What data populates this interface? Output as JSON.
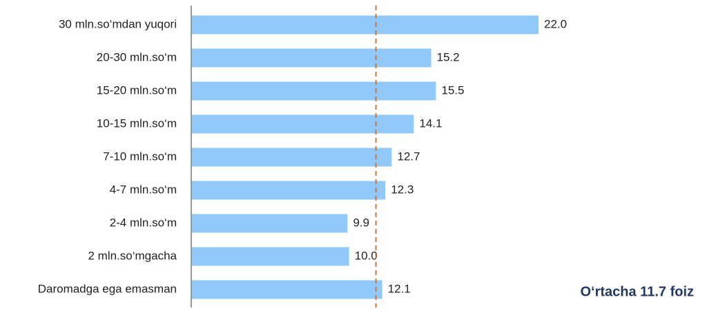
{
  "chart_data": {
    "type": "bar",
    "orientation": "horizontal",
    "categories": [
      "30 mln.so‘mdan yuqori",
      "20-30 mln.so‘m",
      "15-20 mln.so‘m",
      "10-15 mln.so‘m",
      "7-10 mln.so‘m",
      "4-7 mln.so‘m",
      "2-4 mln.so‘m",
      "2 mln.so‘mgacha",
      "Daromadga ega emasman"
    ],
    "values": [
      22.0,
      15.2,
      15.5,
      14.1,
      12.7,
      12.3,
      9.9,
      10.0,
      12.1
    ],
    "value_labels": [
      "22.0",
      "15.2",
      "15.5",
      "14.1",
      "12.7",
      "12.3",
      "9.9",
      "10.0",
      "12.1"
    ],
    "color": "#93c9f8",
    "reference_line": {
      "value": 11.7,
      "color": "#c8743a",
      "label": "O‘rtacha 11.7 foiz"
    }
  }
}
